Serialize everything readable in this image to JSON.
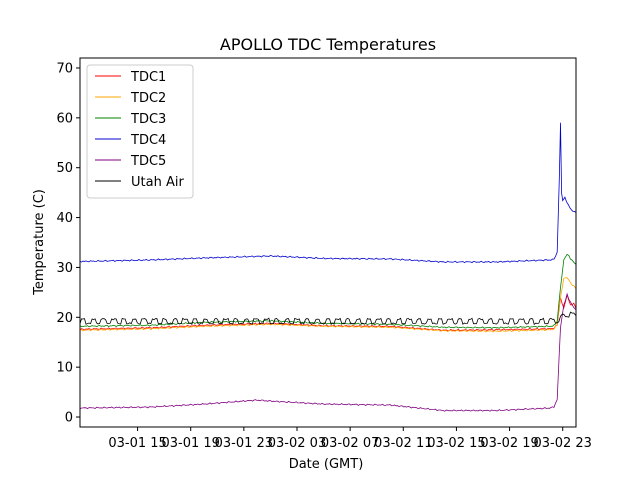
{
  "chart_data": {
    "type": "line",
    "title": "APOLLO TDC Temperatures",
    "xlabel": "Date (GMT)",
    "ylabel": "Temperature (C)",
    "xlim": [
      "2023-03-01 10:40",
      "2023-03-03 00:00"
    ],
    "ylim": [
      -2,
      72
    ],
    "grid": false,
    "legend": "top-left",
    "x_ticks": [
      {
        "value": "2023-03-01 15:00",
        "label": "03-01 15"
      },
      {
        "value": "2023-03-01 19:00",
        "label": "03-01 19"
      },
      {
        "value": "2023-03-01 23:00",
        "label": "03-01 23"
      },
      {
        "value": "2023-03-02 03:00",
        "label": "03-02 03"
      },
      {
        "value": "2023-03-02 07:00",
        "label": "03-02 07"
      },
      {
        "value": "2023-03-02 11:00",
        "label": "03-02 11"
      },
      {
        "value": "2023-03-02 15:00",
        "label": "03-02 15"
      },
      {
        "value": "2023-03-02 19:00",
        "label": "03-02 19"
      },
      {
        "value": "2023-03-02 23:00",
        "label": "03-02 23"
      }
    ],
    "y_ticks": [
      0,
      10,
      20,
      30,
      40,
      50,
      60,
      70
    ],
    "series": [
      {
        "name": "TDC1",
        "color": "#ff0000",
        "x": [
          "2023-03-01 10:40",
          "2023-03-01 16:00",
          "2023-03-01 20:00",
          "2023-03-02 01:00",
          "2023-03-02 05:00",
          "2023-03-02 10:00",
          "2023-03-02 14:00",
          "2023-03-02 18:00",
          "2023-03-02 22:00",
          "2023-03-02 22:20",
          "2023-03-02 22:35",
          "2023-03-02 22:50",
          "2023-03-02 23:05",
          "2023-03-02 23:20",
          "2023-03-02 23:35",
          "2023-03-02 23:50",
          "2023-03-03 00:00"
        ],
        "y": [
          17.6,
          17.9,
          18.4,
          18.8,
          18.3,
          18.2,
          17.4,
          17.5,
          17.7,
          17.8,
          18.5,
          23.8,
          21.8,
          24.5,
          22.4,
          22.8,
          21.8
        ]
      },
      {
        "name": "TDC2",
        "color": "#ffa500",
        "x": [
          "2023-03-01 10:40",
          "2023-03-01 16:00",
          "2023-03-01 20:00",
          "2023-03-02 01:00",
          "2023-03-02 05:00",
          "2023-03-02 10:00",
          "2023-03-02 14:00",
          "2023-03-02 18:00",
          "2023-03-02 22:00",
          "2023-03-02 22:20",
          "2023-03-02 22:35",
          "2023-03-02 22:50",
          "2023-03-02 23:05",
          "2023-03-02 23:20",
          "2023-03-02 23:35",
          "2023-03-02 23:50",
          "2023-03-03 00:00"
        ],
        "y": [
          17.4,
          17.7,
          18.2,
          18.6,
          18.2,
          18.0,
          17.3,
          17.2,
          17.5,
          17.6,
          18.6,
          24.0,
          27.8,
          28.0,
          26.9,
          26.2,
          25.7
        ]
      },
      {
        "name": "TDC3",
        "color": "#008000",
        "x": [
          "2023-03-01 10:40",
          "2023-03-01 16:00",
          "2023-03-01 20:00",
          "2023-03-02 01:00",
          "2023-03-02 05:00",
          "2023-03-02 10:00",
          "2023-03-02 14:00",
          "2023-03-02 18:00",
          "2023-03-02 22:00",
          "2023-03-02 22:20",
          "2023-03-02 22:35",
          "2023-03-02 22:50",
          "2023-03-02 23:05",
          "2023-03-02 23:20",
          "2023-03-02 23:35",
          "2023-03-02 23:50",
          "2023-03-03 00:00"
        ],
        "y": [
          18.2,
          18.4,
          19.0,
          19.3,
          18.8,
          18.6,
          18.0,
          17.9,
          18.2,
          18.3,
          19.2,
          26.0,
          31.5,
          32.7,
          31.8,
          31.0,
          30.6
        ]
      },
      {
        "name": "TDC4",
        "color": "#0000cc",
        "x": [
          "2023-03-01 10:40",
          "2023-03-01 16:00",
          "2023-03-01 20:00",
          "2023-03-02 01:00",
          "2023-03-02 05:00",
          "2023-03-02 10:00",
          "2023-03-02 14:00",
          "2023-03-02 18:00",
          "2023-03-02 22:00",
          "2023-03-02 22:20",
          "2023-03-02 22:35",
          "2023-03-02 22:45",
          "2023-03-02 22:50",
          "2023-03-02 22:55",
          "2023-03-02 23:00",
          "2023-03-02 23:10",
          "2023-03-02 23:25",
          "2023-03-02 23:40",
          "2023-03-03 00:00"
        ],
        "y": [
          31.2,
          31.5,
          31.9,
          32.3,
          31.8,
          31.7,
          31.1,
          31.1,
          31.5,
          31.6,
          33.0,
          48.5,
          59.0,
          45.0,
          43.5,
          44.0,
          42.5,
          41.5,
          41.0
        ]
      },
      {
        "name": "TDC5",
        "color": "#800080",
        "x": [
          "2023-03-01 10:40",
          "2023-03-01 16:00",
          "2023-03-01 20:00",
          "2023-03-02 00:00",
          "2023-03-02 01:00",
          "2023-03-02 05:00",
          "2023-03-02 10:00",
          "2023-03-02 14:00",
          "2023-03-02 18:00",
          "2023-03-02 22:00",
          "2023-03-02 22:20",
          "2023-03-02 22:35",
          "2023-03-02 22:50",
          "2023-03-02 23:05",
          "2023-03-02 23:20",
          "2023-03-02 23:35",
          "2023-03-02 23:50",
          "2023-03-03 00:00"
        ],
        "y": [
          1.8,
          2.0,
          2.6,
          3.4,
          3.2,
          2.6,
          2.4,
          1.3,
          1.3,
          1.8,
          2.0,
          3.5,
          18.0,
          22.5,
          24.5,
          23.0,
          22.0,
          21.5
        ]
      },
      {
        "name": "Utah Air",
        "color": "#000000",
        "x": [
          "2023-03-01 10:40",
          "2023-03-01 16:00",
          "2023-03-01 20:00",
          "2023-03-02 01:00",
          "2023-03-02 05:00",
          "2023-03-02 10:00",
          "2023-03-02 14:00",
          "2023-03-02 18:00",
          "2023-03-02 22:00",
          "2023-03-02 22:20",
          "2023-03-02 22:35",
          "2023-03-02 22:50",
          "2023-03-02 23:05",
          "2023-03-02 23:20",
          "2023-03-02 23:35",
          "2023-03-02 23:50",
          "2023-03-03 00:00"
        ],
        "y": [
          19.2,
          19.2,
          19.2,
          19.2,
          19.2,
          19.2,
          19.2,
          19.2,
          19.2,
          19.2,
          19.3,
          19.8,
          20.3,
          20.6,
          20.5,
          20.4,
          20.3
        ]
      }
    ]
  }
}
